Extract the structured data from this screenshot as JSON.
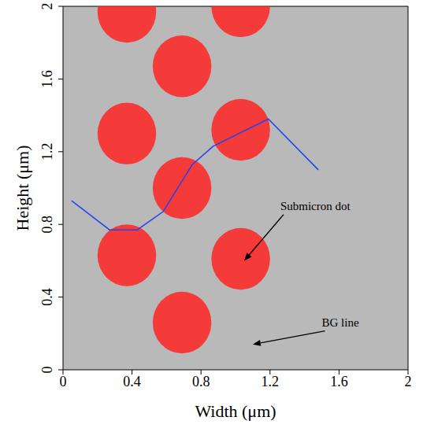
{
  "chart_data": {
    "type": "scatter",
    "x_label": "Width (μm)",
    "y_label": "Height (μm)",
    "xlim": [
      0,
      2
    ],
    "ylim": [
      0,
      2
    ],
    "xticks": [
      0,
      0.4,
      0.8,
      1.2,
      1.6,
      2
    ],
    "yticks": [
      0,
      0.4,
      0.8,
      1.2,
      1.6,
      2
    ],
    "grid": false,
    "series": [
      {
        "type": "scatter",
        "marker": "circle",
        "color": "#ff2323",
        "diameter": 0.34,
        "x": [
          0.37,
          1.03,
          0.69,
          0.37,
          1.03,
          0.69,
          0.37,
          1.03,
          0.69
        ],
        "y": [
          1.97,
          2.0,
          1.67,
          1.3,
          1.32,
          1.0,
          0.63,
          0.61,
          0.26
        ]
      },
      {
        "type": "line",
        "line_style": "solid",
        "color": "#2244ee",
        "x": [
          0.05,
          0.27,
          0.43,
          0.58,
          0.75,
          0.87,
          1.19,
          1.48
        ],
        "y": [
          0.93,
          0.77,
          0.77,
          0.87,
          1.13,
          1.23,
          1.38,
          1.1
        ]
      }
    ],
    "annotations": [
      {
        "text": "Submicron dot",
        "x": 1.26,
        "y": 0.88,
        "arrow_x": 1.05,
        "arrow_y": 0.6
      },
      {
        "text": "BG line",
        "x": 1.5,
        "y": 0.24,
        "arrow_x": 1.1,
        "arrow_y": 0.14
      }
    ]
  }
}
